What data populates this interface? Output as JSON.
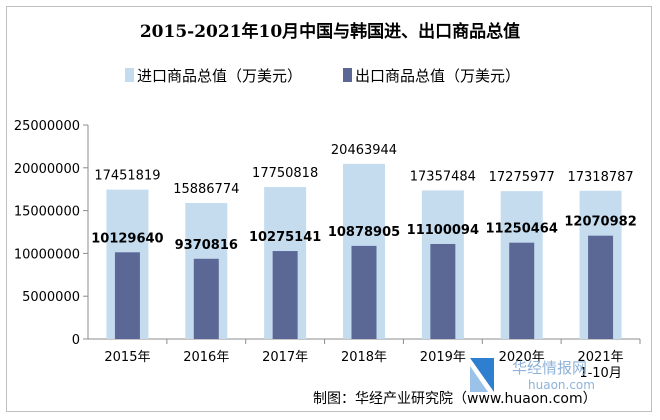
{
  "chart_data": {
    "type": "bar",
    "title": "2015-2021年10月中国与韩国进、出口商品总值",
    "categories": [
      "2015年",
      "2016年",
      "2017年",
      "2018年",
      "2019年",
      "2020年",
      "2021年 1-10月"
    ],
    "series": [
      {
        "name": "进口商品总值（万美元）",
        "color": "#c5dcef",
        "values": [
          17451819,
          15886774,
          17750818,
          20463944,
          17357484,
          17275977,
          17318787
        ]
      },
      {
        "name": "出口商品总值（万美元）",
        "color": "#5b6896",
        "values": [
          10129640,
          9370816,
          10275141,
          10878905,
          11100094,
          11250464,
          12070982
        ]
      }
    ],
    "y_ticks": [
      "0",
      "5000000",
      "10000000",
      "15000000",
      "20000000",
      "25000000"
    ],
    "ylim": [
      0,
      25000000
    ],
    "grid": false,
    "legend_position": "top"
  },
  "credit": "制图：华经产业研究院（www.huaon.com）",
  "watermark": {
    "brand": "华经情报网",
    "url": "huaon.com"
  }
}
